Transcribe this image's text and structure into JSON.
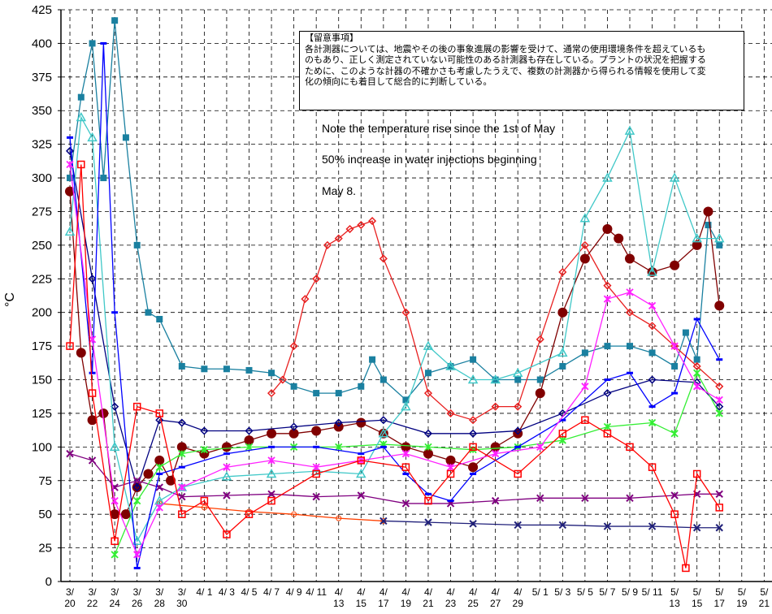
{
  "chart_data": {
    "type": "line",
    "y_label": "°C",
    "note_lines": [
      "【留意事項】",
      "各計測器については、地震やその後の事象進展の影響を受けて、通常の使用環境条件を超えているも",
      "のもあり、正しく測定されていない可能性のある計測器も存在している。プラントの状況を把握する",
      "ために、このような計器の不確かさも考慮したうえで、複数の計測器から得られる情報を使用して変",
      "化の傾向にも着目して総合的に判断している。"
    ],
    "annotations": [
      "Note the temperature rise since the 1st of May",
      "50% increase in water injections beginning",
      "May 8."
    ],
    "ylim": [
      0,
      425
    ],
    "yticks": [
      0,
      25,
      50,
      75,
      100,
      125,
      150,
      175,
      200,
      225,
      250,
      275,
      300,
      325,
      350,
      375,
      400,
      425
    ],
    "xlim": [
      -0.8,
      62.7
    ],
    "xticks": [
      {
        "value": 0,
        "label": "3/ 20"
      },
      {
        "value": 2,
        "label": "3/ 22"
      },
      {
        "value": 4,
        "label": "3/ 24"
      },
      {
        "value": 6,
        "label": "3/ 26"
      },
      {
        "value": 8,
        "label": "3/ 28"
      },
      {
        "value": 10,
        "label": "3/ 30"
      },
      {
        "value": 12,
        "label": "4/ 1"
      },
      {
        "value": 14,
        "label": "4/ 3"
      },
      {
        "value": 16,
        "label": "4/ 5"
      },
      {
        "value": 18,
        "label": "4/ 7"
      },
      {
        "value": 20,
        "label": "4/ 9"
      },
      {
        "value": 22,
        "label": "4/ 11"
      },
      {
        "value": 24,
        "label": "4/ 13"
      },
      {
        "value": 26,
        "label": "4/ 15"
      },
      {
        "value": 28,
        "label": "4/ 17"
      },
      {
        "value": 30,
        "label": "4/ 19"
      },
      {
        "value": 32,
        "label": "4/ 21"
      },
      {
        "value": 34,
        "label": "4/ 23"
      },
      {
        "value": 36,
        "label": "4/ 25"
      },
      {
        "value": 38,
        "label": "4/ 27"
      },
      {
        "value": 40,
        "label": "4/ 29"
      },
      {
        "value": 42,
        "label": "5/ 1"
      },
      {
        "value": 44,
        "label": "5/ 3"
      },
      {
        "value": 46,
        "label": "5/ 5"
      },
      {
        "value": 48,
        "label": "5/ 7"
      },
      {
        "value": 50,
        "label": "5/ 9"
      },
      {
        "value": 52,
        "label": "5/ 11"
      },
      {
        "value": 54,
        "label": "5/ 13"
      },
      {
        "value": 56,
        "label": "5/ 15"
      },
      {
        "value": 58,
        "label": "5/ 17"
      },
      {
        "value": 60,
        "label": "5/ 19"
      },
      {
        "value": 62,
        "label": "5/ 21"
      }
    ],
    "grid": true,
    "series": [
      {
        "color": "#1a80a0",
        "marker": "square",
        "x": [
          0,
          1,
          2,
          3,
          4,
          5,
          6,
          7,
          8,
          10,
          12,
          14,
          16,
          18,
          20,
          22,
          24,
          26,
          27,
          28,
          30,
          32,
          34,
          36,
          38,
          40,
          42,
          44,
          46,
          48,
          50,
          52,
          54,
          55,
          56,
          57,
          58
        ],
        "values": [
          300,
          360,
          400,
          300,
          417,
          330,
          250,
          200,
          195,
          160,
          158,
          158,
          157,
          155,
          145,
          140,
          140,
          145,
          165,
          150,
          135,
          155,
          160,
          165,
          150,
          150,
          150,
          160,
          170,
          175,
          175,
          170,
          160,
          185,
          165,
          265,
          250
        ]
      },
      {
        "color": "#e82020",
        "marker": "diamond",
        "x": [
          18,
          19,
          20,
          21,
          22,
          23,
          24,
          25,
          26,
          27,
          28,
          30,
          32,
          34,
          36,
          38,
          40,
          42,
          44,
          46,
          48,
          50,
          52,
          54,
          56,
          58
        ],
        "values": [
          140,
          150,
          175,
          210,
          225,
          250,
          255,
          262,
          265,
          268,
          240,
          200,
          140,
          125,
          120,
          130,
          130,
          180,
          230,
          250,
          220,
          200,
          190,
          175,
          160,
          145
        ]
      },
      {
        "color": "#800000",
        "marker": "circle",
        "x": [
          0,
          1,
          2,
          3,
          4,
          5,
          6,
          7,
          8,
          9,
          10,
          12,
          14,
          16,
          18,
          20,
          22,
          24,
          26,
          28,
          30,
          32,
          34,
          36,
          38,
          40,
          42,
          44,
          46,
          48,
          49,
          50,
          52,
          54,
          56,
          57,
          58
        ],
        "values": [
          290,
          170,
          120,
          125,
          50,
          50,
          70,
          80,
          90,
          75,
          100,
          95,
          100,
          105,
          110,
          110,
          112,
          115,
          118,
          110,
          100,
          95,
          90,
          85,
          100,
          110,
          140,
          200,
          240,
          262,
          255,
          240,
          230,
          235,
          250,
          275,
          205
        ]
      },
      {
        "color": "#000080",
        "marker": "diamond-open",
        "x": [
          0,
          2,
          4,
          6,
          8,
          10,
          12,
          16,
          20,
          24,
          28,
          32,
          36,
          40,
          44,
          48,
          52,
          56,
          58
        ],
        "values": [
          320,
          225,
          130,
          70,
          120,
          118,
          112,
          112,
          115,
          118,
          120,
          110,
          110,
          112,
          125,
          140,
          150,
          148,
          130
        ]
      },
      {
        "color": "#800080",
        "marker": "x",
        "x": [
          0,
          2,
          4,
          6,
          8,
          10,
          14,
          18,
          22,
          26,
          30,
          34,
          38,
          42,
          46,
          50,
          54,
          56,
          58
        ],
        "values": [
          95,
          90,
          70,
          75,
          70,
          63,
          64,
          65,
          63,
          64,
          58,
          58,
          60,
          62,
          62,
          62,
          64,
          65,
          65
        ]
      },
      {
        "color": "#ff4000",
        "marker": "circle-open",
        "x": [
          8,
          12,
          16,
          20,
          24,
          28
        ],
        "values": [
          58,
          55,
          52,
          50,
          47,
          45
        ]
      },
      {
        "color": "#20207a",
        "marker": "x",
        "x": [
          28,
          32,
          36,
          40,
          44,
          48,
          52,
          56,
          58
        ],
        "values": [
          45,
          44,
          43,
          42,
          42,
          41,
          41,
          40,
          40
        ]
      },
      {
        "color": "#33ee33",
        "marker": "asterisk",
        "x": [
          4,
          6,
          8,
          10,
          12,
          16,
          20,
          24,
          28,
          32,
          36,
          40,
          44,
          48,
          52,
          54,
          56,
          58
        ],
        "values": [
          20,
          60,
          85,
          95,
          98,
          100,
          100,
          100,
          102,
          100,
          98,
          100,
          105,
          115,
          118,
          110,
          155,
          125
        ]
      },
      {
        "color": "#40c8c8",
        "marker": "triangle",
        "x": [
          0,
          1,
          2,
          4,
          6,
          8,
          10,
          14,
          18,
          22,
          26,
          28,
          30,
          32,
          34,
          36,
          38,
          40,
          44,
          46,
          48,
          50,
          52,
          54,
          56,
          58
        ],
        "values": [
          260,
          345,
          330,
          100,
          30,
          60,
          70,
          78,
          80,
          82,
          80,
          110,
          130,
          175,
          160,
          150,
          150,
          155,
          170,
          270,
          300,
          335,
          230,
          300,
          255,
          255
        ]
      },
      {
        "color": "#0000ff",
        "marker": "dash",
        "x": [
          0,
          2,
          3,
          4,
          6,
          8,
          10,
          14,
          18,
          22,
          26,
          28,
          30,
          32,
          34,
          36,
          40,
          44,
          48,
          50,
          52,
          54,
          56,
          58
        ],
        "values": [
          330,
          155,
          400,
          200,
          10,
          80,
          85,
          95,
          100,
          100,
          95,
          100,
          80,
          65,
          60,
          80,
          100,
          120,
          150,
          155,
          130,
          140,
          195,
          165
        ]
      },
      {
        "color": "#ff20ff",
        "marker": "asterisk",
        "x": [
          0,
          2,
          4,
          6,
          8,
          10,
          14,
          18,
          22,
          26,
          30,
          34,
          38,
          42,
          46,
          48,
          50,
          52,
          54,
          56,
          58
        ],
        "values": [
          310,
          180,
          60,
          20,
          55,
          70,
          85,
          90,
          85,
          90,
          95,
          85,
          95,
          100,
          145,
          210,
          215,
          205,
          175,
          145,
          135
        ]
      },
      {
        "color": "#ff0000",
        "marker": "square-open",
        "x": [
          0,
          1,
          2,
          4,
          6,
          8,
          10,
          12,
          14,
          16,
          18,
          22,
          26,
          30,
          32,
          34,
          36,
          40,
          44,
          46,
          48,
          50,
          52,
          54,
          55,
          56,
          58
        ],
        "values": [
          175,
          310,
          140,
          30,
          130,
          125,
          50,
          60,
          35,
          50,
          60,
          80,
          90,
          85,
          60,
          80,
          100,
          80,
          110,
          120,
          110,
          100,
          85,
          50,
          10,
          80,
          55
        ]
      }
    ]
  }
}
